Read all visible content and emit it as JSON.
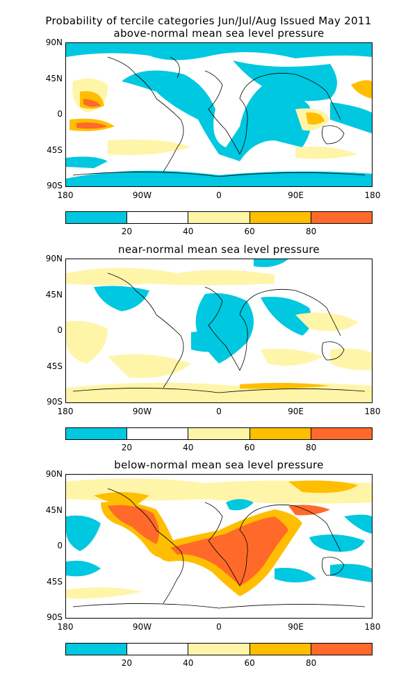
{
  "header": {
    "line1": "Probability of tercile categories Jun/Jul/Aug Issued May 2011",
    "line2": "above-normal mean sea level pressure"
  },
  "panels": [
    {
      "title": "above-normal mean sea level pressure"
    },
    {
      "title": "near-normal mean sea level pressure"
    },
    {
      "title": "below-normal mean sea level pressure"
    }
  ],
  "axes": {
    "y_ticks": [
      "90N",
      "45N",
      "0",
      "45S",
      "90S"
    ],
    "x_ticks": [
      "180",
      "90W",
      "0",
      "90E",
      "180"
    ]
  },
  "colorbar": {
    "colors": [
      "#00c8e0",
      "#ffffff",
      "#fff5a8",
      "#ffbe00",
      "#ff6a2a"
    ],
    "labels": [
      "20",
      "40",
      "60",
      "80"
    ]
  }
}
